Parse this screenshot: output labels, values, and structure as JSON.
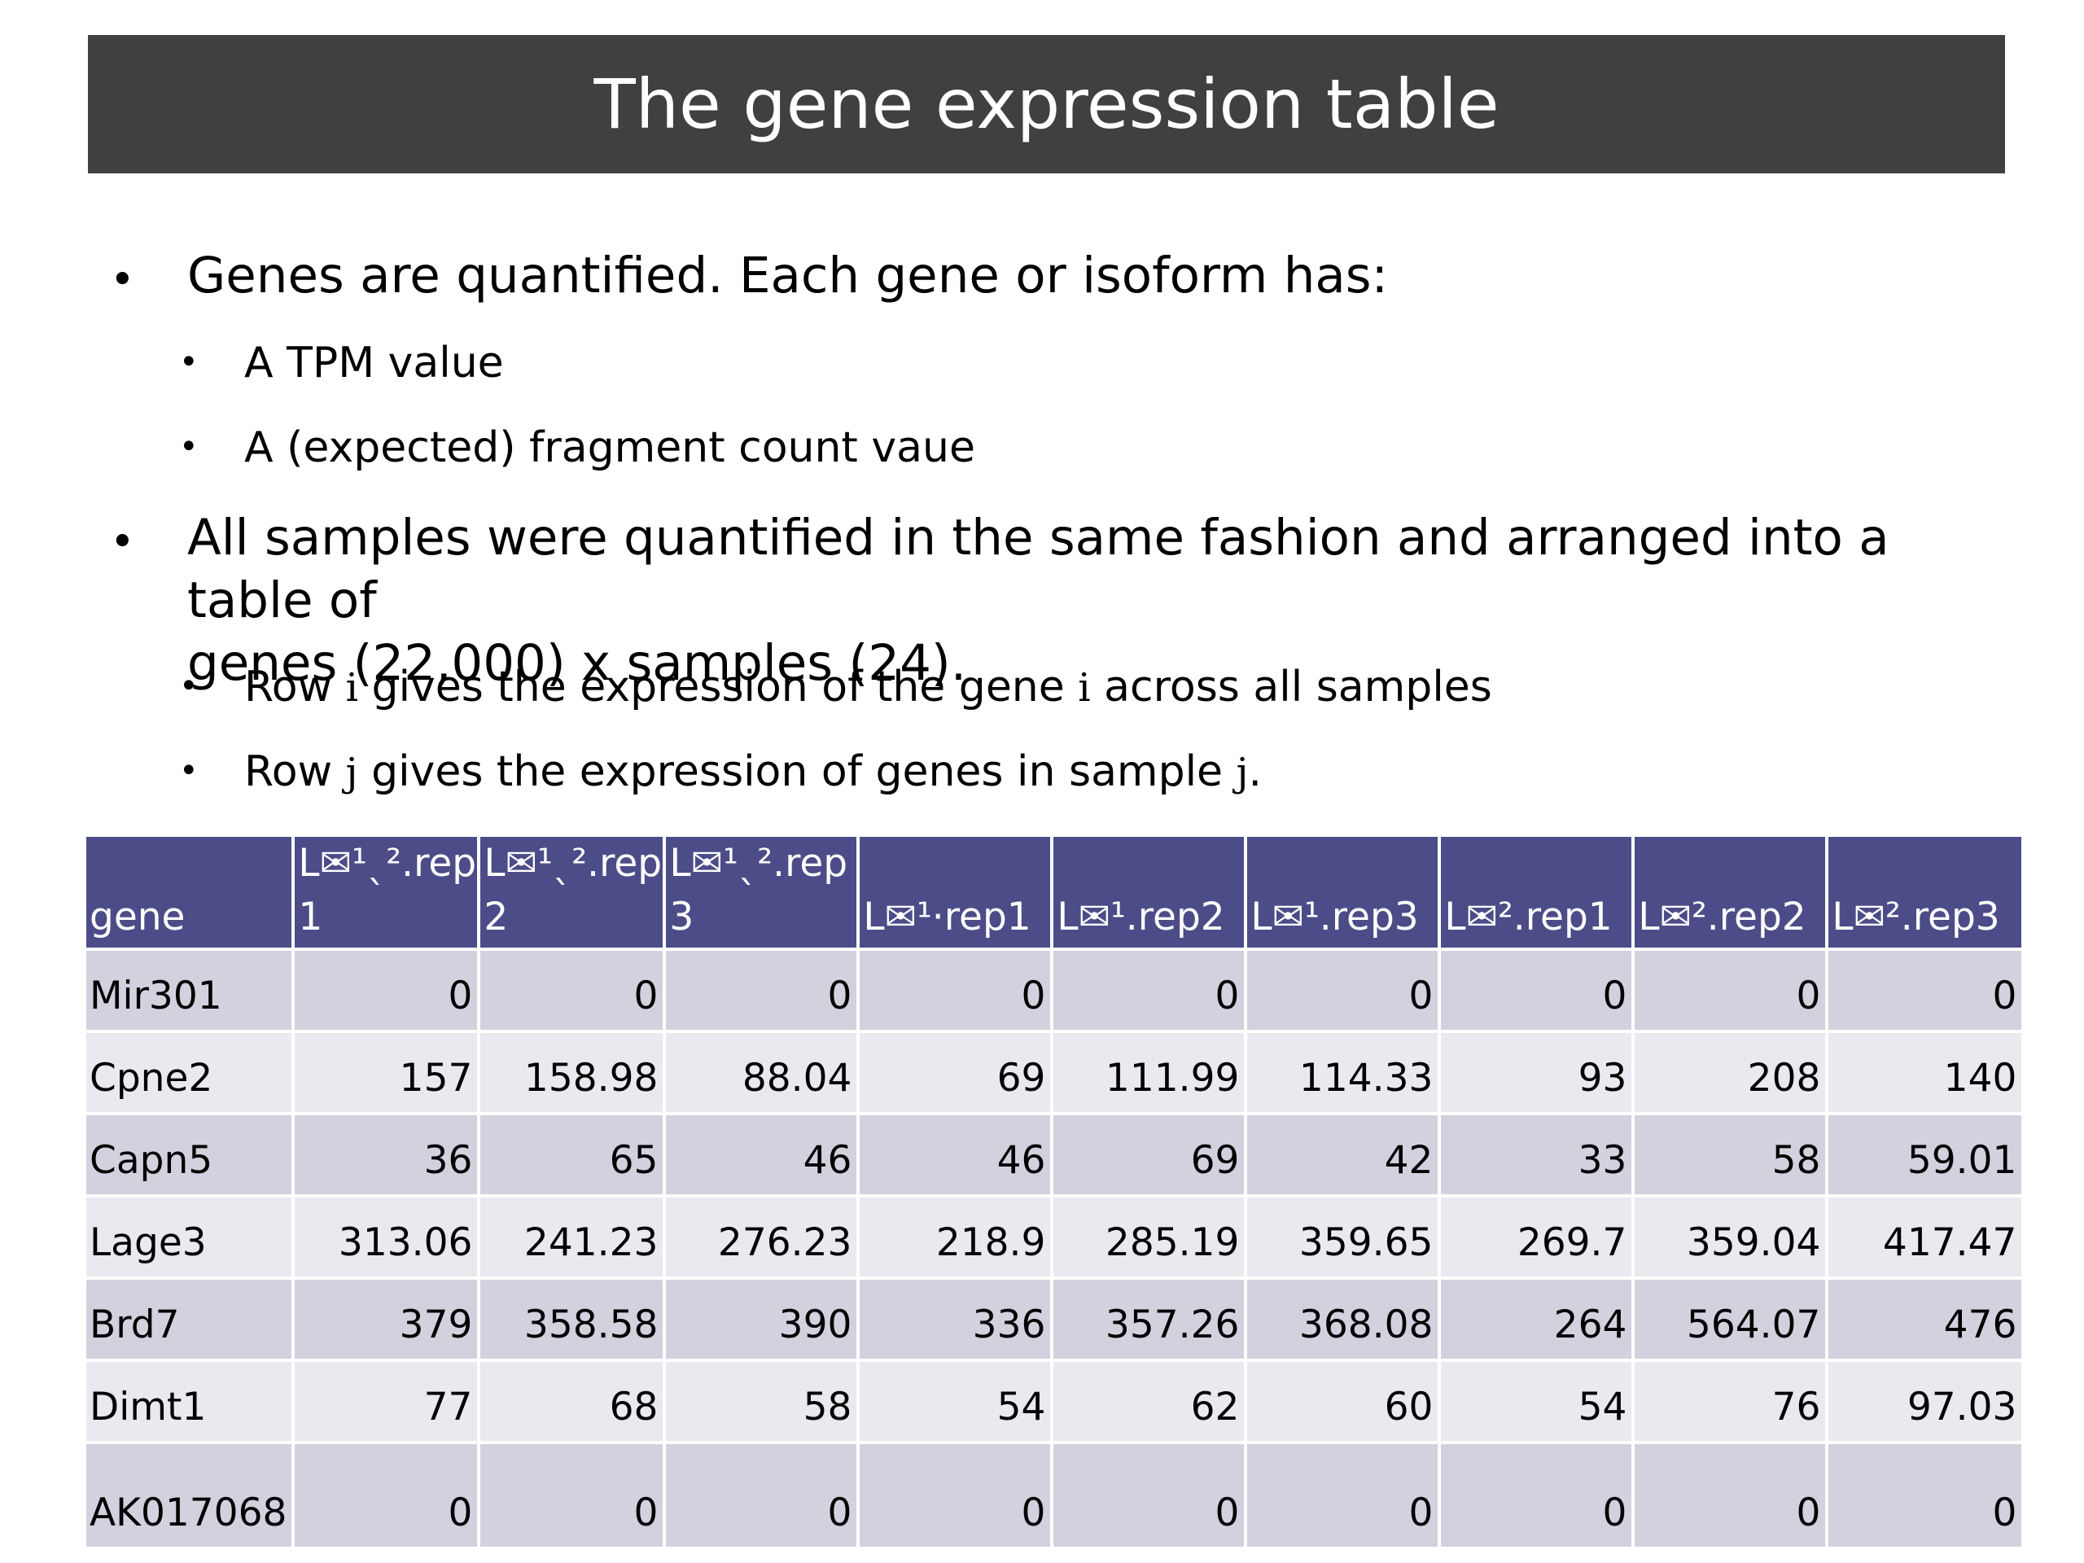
{
  "title": "The gene expression table",
  "bullets": [
    {
      "level": 1,
      "text": "Genes are quantified. Each gene or isoform has:"
    },
    {
      "level": 2,
      "text": "A TPM value"
    },
    {
      "level": 2,
      "text": "A (expected) fragment count vaue"
    },
    {
      "level": 1,
      "line1": "All samples were quantified in the same fashion and arranged into a table of",
      "line2": "genes (22,000) x samples (24)."
    },
    {
      "level": 2,
      "pre": "Row ",
      "sym": "i",
      "mid": " gives the expression of the gene ",
      "sym2": "i",
      "post": " across all samples"
    },
    {
      "level": 2,
      "pre": "Row ",
      "sym": "j",
      "post": " gives the expression of genes in sample ",
      "sym2": "j",
      "end": "."
    }
  ],
  "table": {
    "headers": [
      {
        "line1": "",
        "line2": "gene"
      },
      {
        "line1": "L✉¹ˎ².rep",
        "line2": "1"
      },
      {
        "line1": "L✉¹ˎ².rep",
        "line2": "2"
      },
      {
        "line1": "L✉¹ˎ².rep",
        "line2": "3"
      },
      {
        "line1": "",
        "line2": "L✉¹·rep1"
      },
      {
        "line1": "",
        "line2": "L✉¹.rep2"
      },
      {
        "line1": "",
        "line2": "L✉¹.rep3"
      },
      {
        "line1": "",
        "line2": "L✉².rep1"
      },
      {
        "line1": "",
        "line2": "L✉².rep2"
      },
      {
        "line1": "",
        "line2": "L✉².rep3"
      }
    ],
    "rows": [
      [
        "Mir301",
        "0",
        "0",
        "0",
        "0",
        "0",
        "0",
        "0",
        "0",
        "0"
      ],
      [
        "Cpne2",
        "157",
        "158.98",
        "88.04",
        "69",
        "111.99",
        "114.33",
        "93",
        "208",
        "140"
      ],
      [
        "Capn5",
        "36",
        "65",
        "46",
        "46",
        "69",
        "42",
        "33",
        "58",
        "59.01"
      ],
      [
        "Lage3",
        "313.06",
        "241.23",
        "276.23",
        "218.9",
        "285.19",
        "359.65",
        "269.7",
        "359.04",
        "417.47"
      ],
      [
        "Brd7",
        "379",
        "358.58",
        "390",
        "336",
        "357.26",
        "368.08",
        "264",
        "564.07",
        "476"
      ],
      [
        "Dimt1",
        "77",
        "68",
        "58",
        "54",
        "62",
        "60",
        "54",
        "76",
        "97.03"
      ],
      [
        "AK017068",
        "0",
        "0",
        "0",
        "0",
        "0",
        "0",
        "0",
        "0",
        "0"
      ]
    ]
  }
}
